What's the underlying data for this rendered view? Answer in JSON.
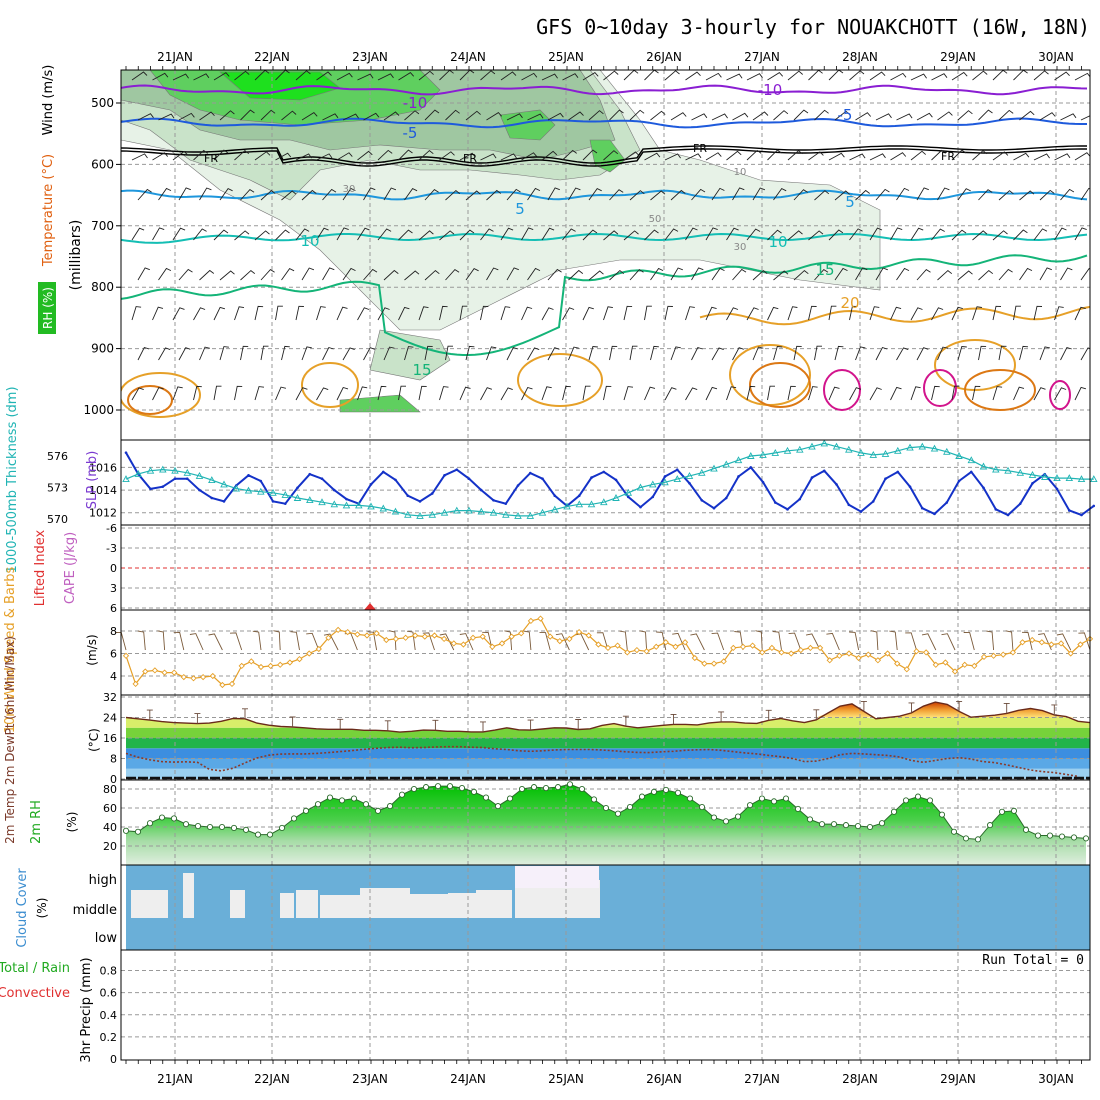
{
  "title": "GFS 0~10day 3-hourly for NOUAKCHOTT (16W, 18N)",
  "dates": [
    "21JAN",
    "22JAN",
    "23JAN",
    "24JAN",
    "25JAN",
    "26JAN",
    "27JAN",
    "28JAN",
    "29JAN",
    "30JAN"
  ],
  "panels": {
    "upper": {
      "ylabel_parts": [
        {
          "text": "RH (%)",
          "color": "#22bb22"
        },
        {
          "text": "Temperature (°C)",
          "color": "#e06010"
        },
        {
          "text": "Wind (m/s)",
          "color": "#000000"
        }
      ],
      "ylabel2": "(millibars)",
      "yticks": [
        "500",
        "600",
        "700",
        "800",
        "900",
        "1000"
      ],
      "isotherm_labels": [
        "-10",
        "-10",
        "-5",
        "-5",
        "FR",
        "FR",
        "FR",
        "FR",
        "5",
        "5",
        "10",
        "10",
        "15",
        "15",
        "20",
        "10",
        "30",
        "30",
        "50"
      ],
      "colors": {
        "m10": "#8a1ed2",
        "m5": "#1e5adc",
        "fr": "#000000",
        "p5": "#1e96dc",
        "p10": "#14beb4",
        "p15": "#14b478",
        "p20": "#e6a028",
        "p25": "#dc7814",
        "p30": "#d2148c"
      }
    },
    "thickness": {
      "label_left": "1000-500mb Thickness (dm)",
      "label_right": "SLP (mb)",
      "left_ticks": [
        "576",
        "573",
        "570"
      ],
      "right_ticks": [
        "1016",
        "1014",
        "1012"
      ],
      "colors": {
        "thickness": "#20b4b4",
        "slp": "#1432c8"
      }
    },
    "cape": {
      "label_left": "Lifted Index",
      "label_right": "CAPE (J/kg)",
      "yticks": [
        "-6",
        "-3",
        "0",
        "3",
        "6"
      ]
    },
    "wind10": {
      "label": "10m Wind Speed & Barbs",
      "unit": "(m/s)",
      "yticks": [
        "8",
        "6",
        "4"
      ],
      "color": "#e6a028"
    },
    "temp2m": {
      "label": "2m Temp 2m DewPt (6hr Min/Max)",
      "unit": "(°C)",
      "yticks": [
        "32",
        "24",
        "16",
        "8",
        "0"
      ]
    },
    "rh2m": {
      "label": "2m RH",
      "unit": "(%)",
      "yticks": [
        "80",
        "60",
        "40",
        "20"
      ]
    },
    "cloud": {
      "label": "Cloud Cover",
      "unit": "(%)",
      "levels": [
        "high",
        "middle",
        "low"
      ]
    },
    "precip": {
      "label_total": "Total / Rain",
      "label_conv": "Convective",
      "label_axis": "3hr Precip (mm)",
      "yticks": [
        "0.8",
        "0.6",
        "0.4",
        "0.2",
        "0"
      ],
      "run_total": "Run Total = 0"
    }
  },
  "chart_data": [
    {
      "type": "line",
      "title": "1000-500mb Thickness (dm) / SLP (mb)",
      "x_start": "20 Jan 12Z",
      "x_step_hours": 3,
      "series": [
        {
          "name": "SLP (mb)",
          "values": [
            1017.3,
            1015.4,
            1014.1,
            1014.3,
            1015.0,
            1015.0,
            1014.0,
            1013.3,
            1013.0,
            1014.4,
            1015.3,
            1014.8,
            1013.0,
            1012.8,
            1014.2,
            1015.4,
            1015.0,
            1014.0,
            1013.2,
            1012.8,
            1014.5,
            1015.6,
            1014.9,
            1013.5,
            1013.0,
            1013.7,
            1015.3,
            1015.8,
            1015.0,
            1014.0,
            1013.1,
            1012.8,
            1014.4,
            1015.5,
            1015.0,
            1013.5,
            1012.6,
            1013.5,
            1015.1,
            1015.6,
            1014.9,
            1013.4,
            1012.5,
            1013.4,
            1015.2,
            1015.8,
            1014.6,
            1013.1,
            1012.4,
            1013.3,
            1015.2,
            1016.0,
            1014.7,
            1012.9,
            1012.3,
            1013.2,
            1015.1,
            1015.7,
            1014.5,
            1012.7,
            1012.1,
            1013.0,
            1015.0,
            1015.6,
            1014.3,
            1012.4,
            1011.9,
            1012.9,
            1014.8,
            1015.6,
            1014.2,
            1012.3,
            1011.8,
            1012.8,
            1014.6,
            1015.4,
            1014.1,
            1012.2,
            1011.8,
            1012.6
          ]
        },
        {
          "name": "1000-500mb Thickness (dm)",
          "values": [
            573.8,
            574.3,
            574.6,
            574.7,
            574.6,
            574.4,
            574.1,
            573.7,
            573.3,
            572.9,
            572.7,
            572.6,
            572.5,
            572.3,
            572.0,
            571.8,
            571.6,
            571.4,
            571.3,
            571.3,
            571.2,
            571.0,
            570.7,
            570.4,
            570.3,
            570.4,
            570.6,
            570.8,
            570.8,
            570.7,
            570.6,
            570.4,
            570.3,
            570.3,
            570.6,
            570.9,
            571.2,
            571.4,
            571.4,
            571.6,
            572.0,
            572.5,
            573.0,
            573.3,
            573.5,
            573.8,
            574.1,
            574.4,
            574.8,
            575.2,
            575.6,
            576.0,
            576.1,
            576.3,
            576.5,
            576.6,
            576.9,
            577.2,
            576.9,
            576.6,
            576.3,
            576.1,
            576.2,
            576.5,
            576.8,
            576.9,
            576.7,
            576.4,
            576.0,
            575.6,
            575.0,
            574.7,
            574.6,
            574.4,
            574.2,
            574.0,
            573.9,
            573.9,
            573.8,
            573.8
          ]
        }
      ]
    },
    {
      "type": "line",
      "title": "10m Wind Speed (m/s)",
      "x_start": "20 Jan 12Z",
      "x_step_hours": 3,
      "ylim": [
        2.5,
        9
      ],
      "series": [
        {
          "name": "10m Wind Speed",
          "values": [
            5.8,
            3.3,
            4.4,
            4.5,
            4.3,
            4.3,
            3.9,
            3.8,
            3.9,
            4.0,
            3.2,
            3.3,
            4.9,
            5.3,
            4.8,
            4.9,
            5.0,
            5.2,
            5.5,
            6.0,
            6.4,
            7.4,
            8.1,
            7.9,
            7.7,
            7.6,
            7.8,
            7.2,
            7.3,
            7.4,
            7.6,
            7.5,
            7.6,
            7.3,
            6.9,
            6.8,
            7.4,
            7.5,
            6.6,
            6.9,
            7.5,
            7.8,
            8.9,
            9.1,
            7.5,
            7.1,
            7.3,
            7.9,
            7.6,
            6.8,
            6.5,
            6.7,
            6.1,
            6.3,
            6.2,
            6.6,
            7.0,
            6.6,
            7.0,
            5.6,
            5.1,
            5.1,
            5.3,
            6.5,
            6.6,
            6.7,
            6.1,
            6.5,
            6.1,
            6.0,
            6.3,
            6.5,
            6.5,
            5.4,
            5.8,
            6.0,
            5.6,
            5.9,
            5.4,
            6.0,
            5.1,
            4.6,
            6.2,
            6.1,
            5.0,
            5.2,
            4.4,
            5.0,
            4.9,
            5.7,
            5.8,
            5.9,
            6.1,
            7.0,
            7.2,
            7.0,
            6.8,
            6.9,
            6.0,
            6.8,
            7.3
          ]
        }
      ]
    },
    {
      "type": "area",
      "title": "2m Temp / 2m DewPt (°C)",
      "x_start": "20 Jan 12Z",
      "x_step_hours": 3,
      "ylim": [
        0,
        32
      ],
      "series": [
        {
          "name": "2m Temp",
          "values": [
            24,
            23.5,
            23,
            22.4,
            22,
            21.8,
            21.6,
            21.8,
            22.5,
            23.6,
            23.5,
            21.8,
            21,
            20.5,
            20.3,
            20,
            19.6,
            19.4,
            19.4,
            19.4,
            19,
            19,
            18.8,
            18.3,
            18.6,
            19.1,
            19,
            18.6,
            18.6,
            18.4,
            18.4,
            19.1,
            20,
            19.2,
            19.1,
            19.5,
            20,
            19.9,
            19.3,
            19.6,
            20.9,
            21.6,
            20.6,
            20,
            20.4,
            20.9,
            21.3,
            21.3,
            21.1,
            21.9,
            22.3,
            22.3,
            21.8,
            21.7,
            22.9,
            23.6,
            22.7,
            22,
            23.1,
            25.8,
            28.4,
            29.3,
            26.4,
            23.5,
            24,
            24.5,
            25.8,
            28.4,
            30,
            29.1,
            26.4,
            24.1,
            24.5,
            24.9,
            25.6,
            26.8,
            27.5,
            26.7,
            25,
            24.4,
            22.5,
            22
          ]
        },
        {
          "name": "2m DewPt",
          "values": [
            10,
            8.5,
            7.5,
            6.8,
            6.6,
            6.7,
            6.5,
            3.8,
            3.2,
            4.2,
            6.3,
            8.2,
            9.3,
            9.7,
            9.8,
            9.8,
            10,
            10.3,
            10.7,
            11.1,
            11.6,
            12,
            12.3,
            12.4,
            12.2,
            12.3,
            12.5,
            12.6,
            12.6,
            12.4,
            12.3,
            11.8,
            11.5,
            11,
            10.8,
            11,
            11.3,
            11.5,
            11.5,
            11.5,
            11.3,
            11,
            10.6,
            10.4,
            10.3,
            10.6,
            10.8,
            11.2,
            11.4,
            11.5,
            11.2,
            10.7,
            10.2,
            9.8,
            9.2,
            8.7,
            8,
            6.8,
            7,
            8,
            9.5,
            10,
            9.8,
            9.5,
            9.2,
            8.6,
            7.2,
            6.5,
            7.2,
            8,
            8.3,
            7.8,
            6.8,
            6.4,
            5.5,
            4.5,
            3.5,
            2.9,
            2.5,
            1.8,
            1
          ]
        }
      ]
    },
    {
      "type": "area",
      "title": "2m RH (%)",
      "x_start": "20 Jan 12Z",
      "x_step_hours": 3,
      "ylim": [
        0,
        90
      ],
      "series": [
        {
          "name": "2m RH",
          "values": [
            36,
            35,
            44,
            50,
            49,
            43,
            41,
            40,
            40,
            39,
            37,
            32,
            32,
            39,
            49,
            57,
            64,
            71,
            68,
            70,
            64,
            57,
            62,
            74,
            80,
            82,
            83,
            83,
            81,
            77,
            71,
            62,
            70,
            80,
            82,
            81,
            82,
            85,
            80,
            69,
            60,
            54,
            61,
            72,
            77,
            79,
            76,
            70,
            61,
            50,
            46,
            51,
            63,
            70,
            67,
            70,
            59,
            48,
            43,
            43,
            42,
            41,
            40,
            44,
            56,
            68,
            72,
            68,
            53,
            35,
            28,
            27,
            42,
            56,
            57,
            37,
            31,
            31,
            30,
            29,
            28
          ]
        }
      ]
    }
  ]
}
